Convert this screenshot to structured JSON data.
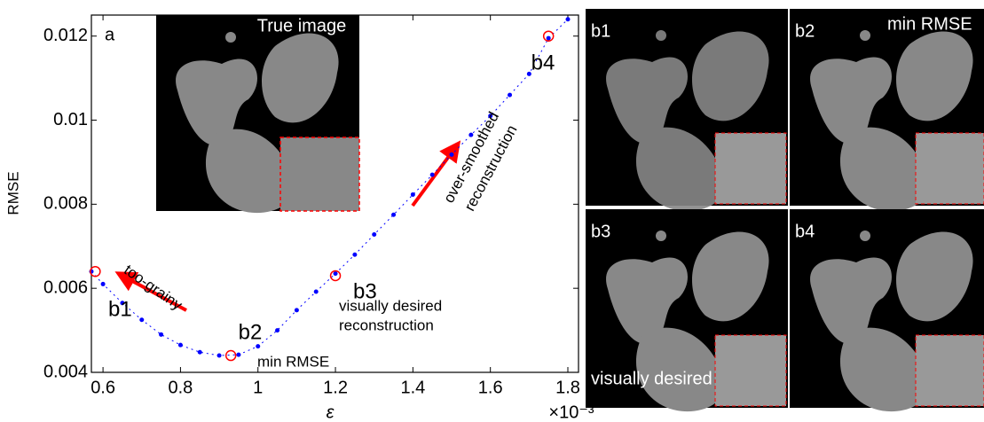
{
  "chart_data": {
    "type": "line",
    "xlabel": "ε",
    "ylabel": "RMSE",
    "x_scale_label": "×10⁻³",
    "panel_label": "a",
    "inset_title": "True image",
    "color": "#0000ff",
    "marker_color": "#ff0000",
    "xlim": [
      0.57,
      1.8
    ],
    "ylim": [
      0.004,
      0.0125
    ],
    "xticks": [
      0.6,
      0.8,
      1,
      1.2,
      1.4,
      1.6,
      1.8
    ],
    "yticks": [
      0.004,
      0.006,
      0.008,
      0.01,
      0.012
    ],
    "x": [
      0.57,
      0.6,
      0.65,
      0.7,
      0.75,
      0.8,
      0.85,
      0.9,
      0.95,
      1.0,
      1.05,
      1.1,
      1.15,
      1.2,
      1.25,
      1.3,
      1.35,
      1.4,
      1.45,
      1.5,
      1.55,
      1.6,
      1.65,
      1.7,
      1.75,
      1.8
    ],
    "values": [
      0.0064,
      0.0061,
      0.00565,
      0.00525,
      0.0049,
      0.00465,
      0.00448,
      0.0044,
      0.00442,
      0.00462,
      0.005,
      0.00548,
      0.00592,
      0.00635,
      0.0068,
      0.00728,
      0.00775,
      0.00823,
      0.0087,
      0.00918,
      0.00965,
      0.0101,
      0.0106,
      0.0111,
      0.01195,
      0.0124
    ],
    "markers": [
      {
        "label": "b1",
        "x": 0.58,
        "y": 0.0064
      },
      {
        "label": "b2",
        "x": 0.93,
        "y": 0.0044
      },
      {
        "label": "b3",
        "x": 1.2,
        "y": 0.0063
      },
      {
        "label": "b4",
        "x": 1.75,
        "y": 0.012
      }
    ],
    "annotations": [
      "too-grainy",
      "min RMSE",
      "visually desired",
      "reconstruction",
      "over-smoothed",
      "reconstruction"
    ],
    "panels": [
      {
        "label": "b1"
      },
      {
        "label": "b2",
        "note": "min RMSE"
      },
      {
        "label": "b3",
        "note": "visually desired"
      },
      {
        "label": "b4"
      }
    ]
  }
}
